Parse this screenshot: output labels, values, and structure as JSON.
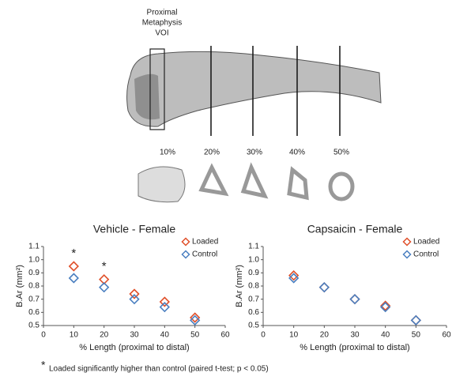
{
  "figure": {
    "voi_label": [
      "Proximal",
      "Metaphysis",
      "VOI"
    ],
    "sections": [
      "10%",
      "20%",
      "30%",
      "40%",
      "50%"
    ],
    "footnote_star": "*",
    "footnote": "Loaded significantly higher than control (paired t-test; p < 0.05)"
  },
  "chart_data": [
    {
      "type": "scatter",
      "title": "Vehicle - Female",
      "xlabel": "% Length (proximal to distal)",
      "ylabel": "B.Ar (mm²)",
      "x": [
        10,
        20,
        30,
        40,
        50
      ],
      "series": [
        {
          "name": "Loaded",
          "color": "#e0502a",
          "values": [
            0.95,
            0.85,
            0.74,
            0.68,
            0.56
          ]
        },
        {
          "name": "Control",
          "color": "#4a7fc0",
          "values": [
            0.86,
            0.79,
            0.7,
            0.64,
            0.54
          ]
        }
      ],
      "markers": [
        {
          "x": 10,
          "label": "*"
        },
        {
          "x": 20,
          "label": "*"
        }
      ],
      "xlim": [
        0,
        60
      ],
      "xticks": [
        0,
        10,
        20,
        30,
        40,
        50,
        60
      ],
      "ylim": [
        0.5,
        1.1
      ],
      "yticks": [
        0.5,
        0.6,
        0.7,
        0.8,
        0.9,
        {
          "value": 1,
          "label": "1.0"
        },
        1.1
      ],
      "legend": "top-right"
    },
    {
      "type": "scatter",
      "title": "Capsaicin - Female",
      "xlabel": "% Length (proximal to distal)",
      "ylabel": "B.Ar (mm²)",
      "x": [
        10,
        20,
        30,
        40,
        50
      ],
      "series": [
        {
          "name": "Loaded",
          "color": "#e0502a",
          "values": [
            0.88,
            0.79,
            0.7,
            0.65,
            0.54
          ]
        },
        {
          "name": "Control",
          "color": "#4a7fc0",
          "values": [
            0.86,
            0.79,
            0.7,
            0.64,
            0.54
          ]
        }
      ],
      "xlim": [
        0,
        60
      ],
      "xticks": [
        0,
        10,
        20,
        30,
        40,
        50,
        60
      ],
      "ylim": [
        0.5,
        1.1
      ],
      "yticks": [
        0.5,
        0.6,
        0.7,
        0.8,
        0.9,
        {
          "value": 1,
          "label": "1.0"
        },
        1.1
      ],
      "legend": "top-right"
    }
  ]
}
